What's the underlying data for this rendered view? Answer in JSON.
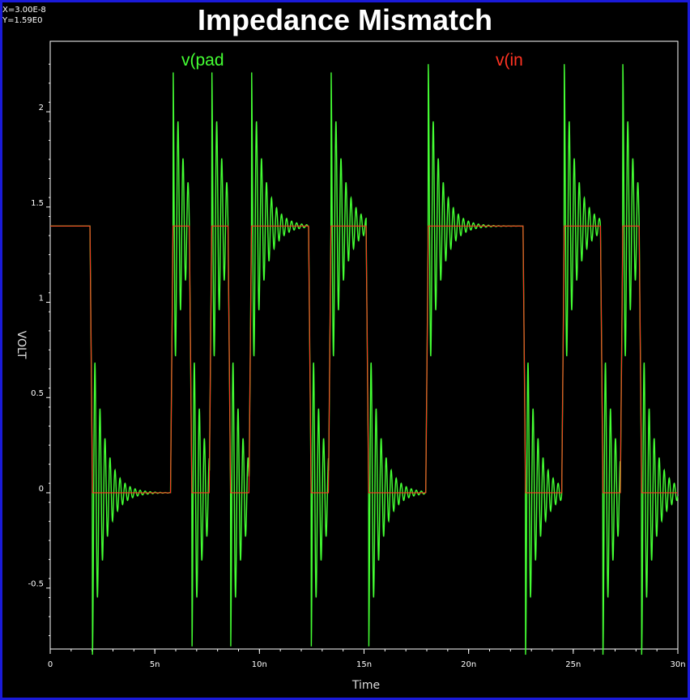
{
  "window": {
    "border_color": "#1a1ad8",
    "background": "#000000"
  },
  "cursor_readout": {
    "x": "X=3.00E-8",
    "y": "Y=1.59E0"
  },
  "chart_data": {
    "type": "line",
    "title": "Impedance Mismatch",
    "xlabel": "Time",
    "ylabel": "VOLT",
    "xlim": [
      0,
      30
    ],
    "ylim": [
      -0.82,
      2.37
    ],
    "x_ticks": [
      {
        "value": 0,
        "label": "0"
      },
      {
        "value": 5,
        "label": "5n"
      },
      {
        "value": 10,
        "label": "10n"
      },
      {
        "value": 15,
        "label": "15n"
      },
      {
        "value": 20,
        "label": "20n"
      },
      {
        "value": 25,
        "label": "25n"
      },
      {
        "value": 30,
        "label": "30n"
      }
    ],
    "y_ticks": [
      {
        "value": -0.5,
        "label": "-0.5"
      },
      {
        "value": 0,
        "label": "0"
      },
      {
        "value": 0.5,
        "label": "0.5"
      },
      {
        "value": 1,
        "label": "1"
      },
      {
        "value": 1.5,
        "label": "1.5"
      },
      {
        "value": 2,
        "label": "2"
      }
    ],
    "grid": false,
    "series": [
      {
        "name": "v(pad",
        "color": "#44ff33",
        "high": 1.4,
        "low": 0.0,
        "initial_level": 1.4,
        "transitions": [
          {
            "t": 1.9,
            "to": 0.0
          },
          {
            "t": 5.75,
            "to": 1.4
          },
          {
            "t": 6.65,
            "to": 0.0
          },
          {
            "t": 7.6,
            "to": 1.4
          },
          {
            "t": 8.5,
            "to": 0.0
          },
          {
            "t": 9.5,
            "to": 1.4
          },
          {
            "t": 12.35,
            "to": 0.0
          },
          {
            "t": 13.3,
            "to": 1.4
          },
          {
            "t": 15.1,
            "to": 0.0
          },
          {
            "t": 17.95,
            "to": 1.4
          },
          {
            "t": 22.6,
            "to": 0.0
          },
          {
            "t": 24.45,
            "to": 1.4
          },
          {
            "t": 26.3,
            "to": 0.0
          },
          {
            "t": 27.25,
            "to": 1.4
          },
          {
            "t": 28.15,
            "to": 0.0
          }
        ],
        "ringing": {
          "first_overshoot": 0.85,
          "period_ns": 0.24,
          "decay_ns": 0.55
        }
      },
      {
        "name": "v(in",
        "color": "#ff3322",
        "high": 1.4,
        "low": 0.0,
        "initial_level": 1.4,
        "transitions": [
          {
            "t": 1.9,
            "to": 0.0
          },
          {
            "t": 5.75,
            "to": 1.4
          },
          {
            "t": 6.65,
            "to": 0.0
          },
          {
            "t": 7.6,
            "to": 1.4
          },
          {
            "t": 8.5,
            "to": 0.0
          },
          {
            "t": 9.5,
            "to": 1.4
          },
          {
            "t": 12.35,
            "to": 0.0
          },
          {
            "t": 13.3,
            "to": 1.4
          },
          {
            "t": 15.1,
            "to": 0.0
          },
          {
            "t": 17.95,
            "to": 1.4
          },
          {
            "t": 22.6,
            "to": 0.0
          },
          {
            "t": 24.45,
            "to": 1.4
          },
          {
            "t": 26.3,
            "to": 0.0
          },
          {
            "t": 27.25,
            "to": 1.4
          },
          {
            "t": 28.15,
            "to": 0.0
          }
        ]
      }
    ]
  }
}
